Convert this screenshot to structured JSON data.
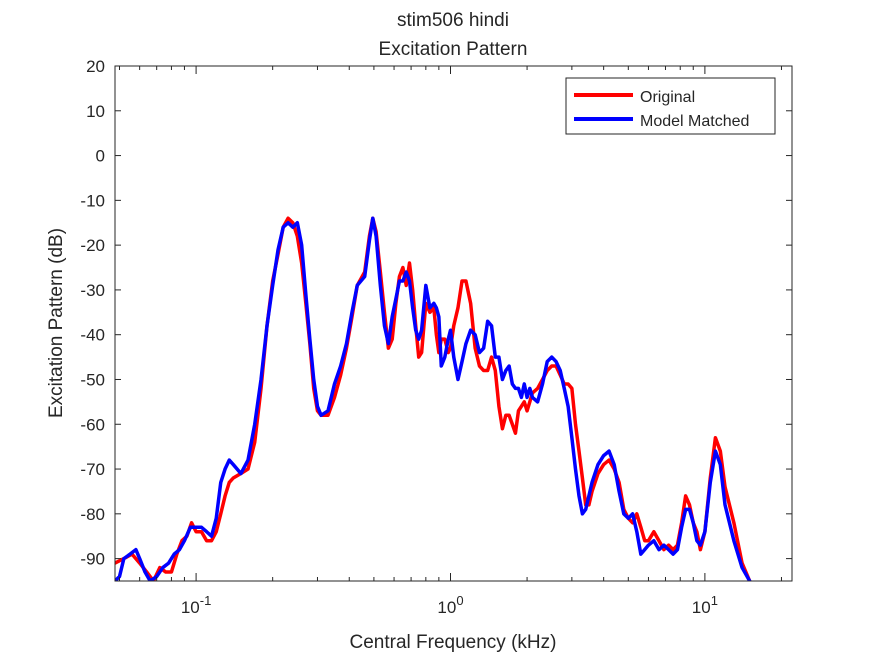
{
  "chart_data": {
    "type": "line",
    "title": "stim506 hindi",
    "subtitle": "Excitation Pattern",
    "xlabel": "Central Frequency (kHz)",
    "ylabel": "Excitation Pattern (dB)",
    "xscale": "log",
    "xlim": [
      0.048,
      22
    ],
    "ylim": [
      -95,
      20
    ],
    "grid": false,
    "legend_position": "top-right",
    "x_ticks": [
      {
        "value": 0.1,
        "base": "10",
        "exp": "-1"
      },
      {
        "value": 1,
        "base": "10",
        "exp": "0"
      },
      {
        "value": 10,
        "base": "10",
        "exp": "1"
      }
    ],
    "y_ticks": [
      20,
      10,
      0,
      -10,
      -20,
      -30,
      -40,
      -50,
      -60,
      -70,
      -80,
      -90
    ],
    "series": [
      {
        "name": "Original",
        "color": "#ff0000",
        "points": [
          [
            0.048,
            -91
          ],
          [
            0.052,
            -90
          ],
          [
            0.056,
            -89
          ],
          [
            0.06,
            -91
          ],
          [
            0.064,
            -93
          ],
          [
            0.068,
            -95
          ],
          [
            0.072,
            -92
          ],
          [
            0.076,
            -93
          ],
          [
            0.08,
            -93
          ],
          [
            0.084,
            -89
          ],
          [
            0.088,
            -86
          ],
          [
            0.092,
            -85
          ],
          [
            0.096,
            -82
          ],
          [
            0.1,
            -84
          ],
          [
            0.105,
            -84
          ],
          [
            0.11,
            -86
          ],
          [
            0.115,
            -86
          ],
          [
            0.12,
            -84
          ],
          [
            0.125,
            -80
          ],
          [
            0.13,
            -76
          ],
          [
            0.135,
            -73
          ],
          [
            0.14,
            -72
          ],
          [
            0.15,
            -71
          ],
          [
            0.16,
            -70
          ],
          [
            0.17,
            -64
          ],
          [
            0.18,
            -52
          ],
          [
            0.19,
            -38
          ],
          [
            0.2,
            -28
          ],
          [
            0.21,
            -22
          ],
          [
            0.22,
            -16
          ],
          [
            0.23,
            -14
          ],
          [
            0.24,
            -15
          ],
          [
            0.25,
            -18
          ],
          [
            0.26,
            -24
          ],
          [
            0.27,
            -33
          ],
          [
            0.28,
            -42
          ],
          [
            0.29,
            -52
          ],
          [
            0.3,
            -57
          ],
          [
            0.31,
            -58
          ],
          [
            0.33,
            -58
          ],
          [
            0.35,
            -54
          ],
          [
            0.37,
            -49
          ],
          [
            0.39,
            -43
          ],
          [
            0.41,
            -36
          ],
          [
            0.43,
            -29
          ],
          [
            0.46,
            -26
          ],
          [
            0.48,
            -18
          ],
          [
            0.495,
            -14
          ],
          [
            0.51,
            -17
          ],
          [
            0.53,
            -26
          ],
          [
            0.55,
            -35
          ],
          [
            0.57,
            -43
          ],
          [
            0.59,
            -41
          ],
          [
            0.61,
            -33
          ],
          [
            0.63,
            -27
          ],
          [
            0.65,
            -25
          ],
          [
            0.67,
            -29
          ],
          [
            0.69,
            -24
          ],
          [
            0.71,
            -30
          ],
          [
            0.73,
            -38
          ],
          [
            0.75,
            -45
          ],
          [
            0.77,
            -44
          ],
          [
            0.8,
            -33
          ],
          [
            0.83,
            -35
          ],
          [
            0.86,
            -34
          ],
          [
            0.88,
            -40
          ],
          [
            0.9,
            -44
          ],
          [
            0.92,
            -41
          ],
          [
            0.95,
            -41
          ],
          [
            0.98,
            -44
          ],
          [
            1.0,
            -43
          ],
          [
            1.03,
            -38
          ],
          [
            1.07,
            -34
          ],
          [
            1.11,
            -28
          ],
          [
            1.15,
            -28
          ],
          [
            1.2,
            -33
          ],
          [
            1.25,
            -43
          ],
          [
            1.3,
            -47
          ],
          [
            1.35,
            -48
          ],
          [
            1.4,
            -48
          ],
          [
            1.45,
            -45
          ],
          [
            1.5,
            -48
          ],
          [
            1.55,
            -56
          ],
          [
            1.6,
            -61
          ],
          [
            1.65,
            -58
          ],
          [
            1.7,
            -58
          ],
          [
            1.75,
            -60
          ],
          [
            1.8,
            -62
          ],
          [
            1.85,
            -57
          ],
          [
            1.9,
            -56
          ],
          [
            1.95,
            -55
          ],
          [
            2.0,
            -57
          ],
          [
            2.05,
            -55
          ],
          [
            2.1,
            -53
          ],
          [
            2.2,
            -52
          ],
          [
            2.3,
            -50
          ],
          [
            2.4,
            -48
          ],
          [
            2.5,
            -47
          ],
          [
            2.6,
            -47
          ],
          [
            2.7,
            -49
          ],
          [
            2.8,
            -51
          ],
          [
            2.9,
            -51
          ],
          [
            3.0,
            -52
          ],
          [
            3.1,
            -60
          ],
          [
            3.2,
            -66
          ],
          [
            3.3,
            -72
          ],
          [
            3.4,
            -78
          ],
          [
            3.5,
            -78
          ],
          [
            3.6,
            -75
          ],
          [
            3.8,
            -71
          ],
          [
            4.0,
            -69
          ],
          [
            4.2,
            -68
          ],
          [
            4.4,
            -70
          ],
          [
            4.6,
            -73
          ],
          [
            4.8,
            -79
          ],
          [
            5.0,
            -81
          ],
          [
            5.2,
            -82
          ],
          [
            5.4,
            -80
          ],
          [
            5.6,
            -83
          ],
          [
            5.8,
            -86
          ],
          [
            6.0,
            -86
          ],
          [
            6.3,
            -84
          ],
          [
            6.6,
            -86
          ],
          [
            6.9,
            -88
          ],
          [
            7.2,
            -87
          ],
          [
            7.5,
            -88
          ],
          [
            7.8,
            -87
          ],
          [
            8.1,
            -82
          ],
          [
            8.4,
            -76
          ],
          [
            8.7,
            -78
          ],
          [
            9.0,
            -82
          ],
          [
            9.3,
            -84
          ],
          [
            9.6,
            -88
          ],
          [
            10.0,
            -84
          ],
          [
            10.5,
            -72
          ],
          [
            11.0,
            -63
          ],
          [
            11.5,
            -66
          ],
          [
            12.0,
            -74
          ],
          [
            13.0,
            -82
          ],
          [
            14.0,
            -91
          ],
          [
            15.0,
            -95
          ]
        ]
      },
      {
        "name": "Model Matched",
        "color": "#0000ff",
        "points": [
          [
            0.048,
            -95
          ],
          [
            0.05,
            -94
          ],
          [
            0.052,
            -90
          ],
          [
            0.055,
            -89
          ],
          [
            0.058,
            -88
          ],
          [
            0.06,
            -90
          ],
          [
            0.063,
            -93
          ],
          [
            0.066,
            -95
          ],
          [
            0.07,
            -94
          ],
          [
            0.074,
            -92
          ],
          [
            0.078,
            -91
          ],
          [
            0.082,
            -89
          ],
          [
            0.086,
            -88
          ],
          [
            0.09,
            -86
          ],
          [
            0.095,
            -83
          ],
          [
            0.1,
            -83
          ],
          [
            0.105,
            -83
          ],
          [
            0.11,
            -84
          ],
          [
            0.115,
            -85
          ],
          [
            0.12,
            -81
          ],
          [
            0.125,
            -73
          ],
          [
            0.13,
            -70
          ],
          [
            0.135,
            -68
          ],
          [
            0.14,
            -69
          ],
          [
            0.15,
            -71
          ],
          [
            0.16,
            -68
          ],
          [
            0.17,
            -60
          ],
          [
            0.18,
            -50
          ],
          [
            0.19,
            -38
          ],
          [
            0.2,
            -29
          ],
          [
            0.21,
            -21
          ],
          [
            0.22,
            -16
          ],
          [
            0.23,
            -15
          ],
          [
            0.24,
            -16
          ],
          [
            0.25,
            -15
          ],
          [
            0.26,
            -20
          ],
          [
            0.27,
            -31
          ],
          [
            0.28,
            -41
          ],
          [
            0.29,
            -50
          ],
          [
            0.3,
            -56
          ],
          [
            0.31,
            -58
          ],
          [
            0.33,
            -57
          ],
          [
            0.35,
            -51
          ],
          [
            0.37,
            -47
          ],
          [
            0.39,
            -42
          ],
          [
            0.41,
            -35
          ],
          [
            0.43,
            -29
          ],
          [
            0.46,
            -27
          ],
          [
            0.48,
            -19
          ],
          [
            0.495,
            -14
          ],
          [
            0.51,
            -18
          ],
          [
            0.53,
            -29
          ],
          [
            0.55,
            -38
          ],
          [
            0.57,
            -42
          ],
          [
            0.59,
            -36
          ],
          [
            0.61,
            -32
          ],
          [
            0.63,
            -28
          ],
          [
            0.65,
            -28
          ],
          [
            0.67,
            -26
          ],
          [
            0.69,
            -28
          ],
          [
            0.71,
            -34
          ],
          [
            0.73,
            -39
          ],
          [
            0.75,
            -41
          ],
          [
            0.77,
            -39
          ],
          [
            0.8,
            -29
          ],
          [
            0.83,
            -34
          ],
          [
            0.86,
            -33
          ],
          [
            0.88,
            -34
          ],
          [
            0.9,
            -36
          ],
          [
            0.92,
            -47
          ],
          [
            0.95,
            -45
          ],
          [
            0.98,
            -41
          ],
          [
            1.0,
            -39
          ],
          [
            1.03,
            -45
          ],
          [
            1.07,
            -50
          ],
          [
            1.11,
            -46
          ],
          [
            1.15,
            -42
          ],
          [
            1.2,
            -39
          ],
          [
            1.25,
            -40
          ],
          [
            1.3,
            -44
          ],
          [
            1.35,
            -43
          ],
          [
            1.4,
            -37
          ],
          [
            1.45,
            -38
          ],
          [
            1.5,
            -45
          ],
          [
            1.55,
            -45
          ],
          [
            1.6,
            -50
          ],
          [
            1.65,
            -48
          ],
          [
            1.7,
            -47
          ],
          [
            1.75,
            -51
          ],
          [
            1.8,
            -52
          ],
          [
            1.85,
            -52
          ],
          [
            1.9,
            -54
          ],
          [
            1.95,
            -51
          ],
          [
            2.0,
            -54
          ],
          [
            2.05,
            -52
          ],
          [
            2.1,
            -54
          ],
          [
            2.2,
            -55
          ],
          [
            2.3,
            -51
          ],
          [
            2.4,
            -46
          ],
          [
            2.5,
            -45
          ],
          [
            2.6,
            -46
          ],
          [
            2.7,
            -48
          ],
          [
            2.8,
            -52
          ],
          [
            2.9,
            -56
          ],
          [
            3.0,
            -63
          ],
          [
            3.1,
            -70
          ],
          [
            3.2,
            -76
          ],
          [
            3.3,
            -80
          ],
          [
            3.4,
            -79
          ],
          [
            3.5,
            -76
          ],
          [
            3.6,
            -73
          ],
          [
            3.8,
            -69
          ],
          [
            4.0,
            -67
          ],
          [
            4.2,
            -66
          ],
          [
            4.4,
            -69
          ],
          [
            4.6,
            -75
          ],
          [
            4.8,
            -80
          ],
          [
            5.0,
            -81
          ],
          [
            5.2,
            -80
          ],
          [
            5.4,
            -84
          ],
          [
            5.6,
            -89
          ],
          [
            5.8,
            -88
          ],
          [
            6.0,
            -87
          ],
          [
            6.3,
            -86
          ],
          [
            6.6,
            -88
          ],
          [
            6.9,
            -87
          ],
          [
            7.2,
            -88
          ],
          [
            7.5,
            -89
          ],
          [
            7.8,
            -88
          ],
          [
            8.1,
            -83
          ],
          [
            8.4,
            -79
          ],
          [
            8.7,
            -79
          ],
          [
            9.0,
            -82
          ],
          [
            9.3,
            -86
          ],
          [
            9.6,
            -87
          ],
          [
            10.0,
            -84
          ],
          [
            10.5,
            -73
          ],
          [
            11.0,
            -66
          ],
          [
            11.5,
            -69
          ],
          [
            12.0,
            -78
          ],
          [
            13.0,
            -86
          ],
          [
            14.0,
            -92
          ],
          [
            15.0,
            -95
          ]
        ]
      }
    ]
  }
}
